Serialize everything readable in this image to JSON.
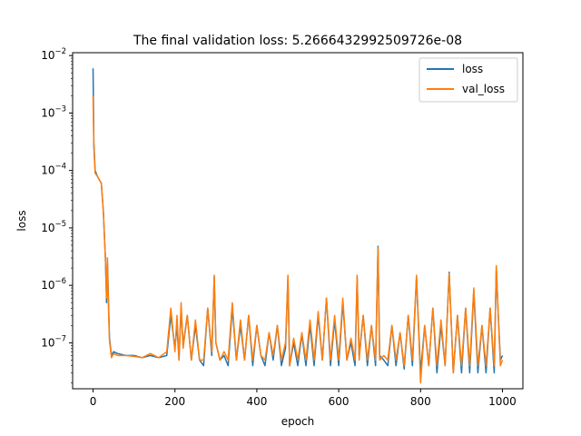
{
  "chart_data": {
    "type": "line",
    "title": "The final validation loss: 5.2666432992509726e-08",
    "xlabel": "epoch",
    "ylabel": "loss",
    "xlim": [
      -50,
      1050
    ],
    "ylim_log10": [
      -7.8,
      -1.95
    ],
    "yscale": "log",
    "grid": false,
    "legend_position": "upper right",
    "x_ticks": [
      0,
      200,
      400,
      600,
      800,
      1000
    ],
    "x_tick_labels": [
      "0",
      "200",
      "400",
      "600",
      "800",
      "1000"
    ],
    "y_ticks": [
      1e-07,
      1e-06,
      1e-05,
      0.0001,
      0.001,
      0.01
    ],
    "y_tick_bases": [
      "10",
      "10",
      "10",
      "10",
      "10",
      "10"
    ],
    "y_tick_exponents": [
      "−7",
      "−6",
      "−5",
      "−4",
      "−3",
      "−2"
    ],
    "series": [
      {
        "name": "loss",
        "color": "#1f77b4",
        "x": [
          0,
          2,
          5,
          10,
          20,
          25,
          30,
          33,
          35,
          38,
          40,
          45,
          50,
          60,
          80,
          100,
          120,
          140,
          160,
          180,
          190,
          200,
          205,
          210,
          215,
          220,
          230,
          240,
          250,
          260,
          270,
          280,
          290,
          296,
          300,
          310,
          320,
          330,
          340,
          350,
          360,
          370,
          380,
          390,
          400,
          410,
          420,
          430,
          440,
          450,
          460,
          470,
          476,
          480,
          490,
          500,
          510,
          520,
          530,
          540,
          550,
          560,
          570,
          580,
          590,
          600,
          610,
          620,
          630,
          640,
          645,
          650,
          660,
          670,
          680,
          690,
          696,
          700,
          710,
          720,
          730,
          740,
          750,
          760,
          770,
          780,
          790,
          800,
          810,
          820,
          830,
          840,
          850,
          860,
          870,
          880,
          890,
          900,
          910,
          920,
          930,
          940,
          950,
          960,
          970,
          980,
          985,
          990,
          995,
          1000
        ],
        "y": [
          0.006,
          0.0003,
          0.0001,
          8e-05,
          6e-05,
          2e-05,
          3e-06,
          5e-07,
          3e-06,
          4e-07,
          1.2e-07,
          6e-08,
          7e-08,
          6.5e-08,
          6e-08,
          6e-08,
          5.5e-08,
          6e-08,
          5.5e-08,
          6e-08,
          3e-07,
          8e-08,
          2e-07,
          5e-08,
          4e-07,
          9e-08,
          3e-07,
          5e-08,
          2e-07,
          5e-08,
          4e-08,
          4e-07,
          6e-08,
          1.4e-06,
          1e-07,
          5e-08,
          6e-08,
          4e-08,
          4e-07,
          5e-08,
          2e-07,
          5e-08,
          3e-07,
          4e-08,
          2e-07,
          6e-08,
          4e-08,
          1.5e-07,
          5e-08,
          2e-07,
          4e-08,
          8e-08,
          1.4e-06,
          4e-08,
          1e-07,
          4e-08,
          1.4e-07,
          4e-08,
          2e-07,
          4e-08,
          3e-07,
          5e-08,
          6e-07,
          4e-08,
          2.5e-07,
          4e-08,
          5e-07,
          5e-08,
          1e-07,
          4e-08,
          1.4e-06,
          6e-08,
          3e-07,
          4e-08,
          2e-07,
          4e-08,
          4.8e-06,
          6e-08,
          5e-08,
          4e-08,
          2e-07,
          4e-08,
          1.5e-07,
          3.5e-08,
          3e-07,
          4e-08,
          1.4e-06,
          3e-08,
          2e-07,
          4e-08,
          4e-07,
          3e-08,
          2e-07,
          4e-08,
          1.7e-06,
          3e-08,
          3e-07,
          3e-08,
          4e-07,
          3e-08,
          8e-07,
          3e-08,
          2e-07,
          3e-08,
          4e-07,
          3e-08,
          2e-06,
          3e-07,
          5e-08,
          6e-08
        ]
      },
      {
        "name": "val_loss",
        "color": "#ff7f0e",
        "x": [
          0,
          2,
          5,
          10,
          20,
          25,
          30,
          33,
          35,
          38,
          40,
          45,
          50,
          60,
          80,
          100,
          120,
          140,
          160,
          180,
          190,
          200,
          205,
          210,
          215,
          220,
          230,
          240,
          250,
          260,
          270,
          280,
          290,
          296,
          300,
          310,
          320,
          330,
          340,
          350,
          360,
          370,
          380,
          390,
          400,
          410,
          420,
          430,
          440,
          450,
          460,
          470,
          476,
          480,
          490,
          500,
          510,
          520,
          530,
          540,
          550,
          560,
          570,
          580,
          590,
          600,
          610,
          620,
          630,
          640,
          645,
          650,
          660,
          670,
          680,
          690,
          696,
          700,
          710,
          720,
          730,
          740,
          750,
          760,
          770,
          780,
          790,
          800,
          810,
          820,
          830,
          840,
          850,
          860,
          870,
          880,
          890,
          900,
          910,
          920,
          930,
          940,
          950,
          960,
          970,
          980,
          985,
          990,
          995,
          1000
        ],
        "y": [
          0.002,
          0.00025,
          9e-05,
          8e-05,
          6e-05,
          2e-05,
          3e-06,
          6e-07,
          3e-06,
          3e-07,
          1.1e-07,
          5.5e-08,
          6.5e-08,
          6e-08,
          6e-08,
          5.8e-08,
          5.5e-08,
          6.5e-08,
          5.5e-08,
          7e-08,
          4e-07,
          7e-08,
          3e-07,
          5e-08,
          5e-07,
          8e-08,
          3e-07,
          5e-08,
          2.5e-07,
          5e-08,
          5e-08,
          4e-07,
          7e-08,
          1.5e-06,
          1e-07,
          5e-08,
          7e-08,
          5e-08,
          5e-07,
          5e-08,
          2.5e-07,
          5e-08,
          3e-07,
          5e-08,
          2e-07,
          6e-08,
          5e-08,
          1.5e-07,
          6e-08,
          2e-07,
          5e-08,
          1e-07,
          1.5e-06,
          4e-08,
          1.2e-07,
          5e-08,
          1.5e-07,
          5e-08,
          2.5e-07,
          5e-08,
          3.5e-07,
          5e-08,
          6e-07,
          5e-08,
          3e-07,
          5e-08,
          6e-07,
          5e-08,
          1.2e-07,
          5e-08,
          1.5e-06,
          5e-08,
          3e-07,
          5e-08,
          2e-07,
          5e-08,
          4.5e-06,
          5e-08,
          6e-08,
          5e-08,
          2e-07,
          5e-08,
          1.5e-07,
          4e-08,
          3e-07,
          5e-08,
          1.5e-06,
          2e-08,
          2e-07,
          4e-08,
          4e-07,
          4e-08,
          2.5e-07,
          4e-08,
          1.6e-06,
          3e-08,
          3e-07,
          4e-08,
          4e-07,
          4e-08,
          9e-07,
          4e-08,
          2e-07,
          4e-08,
          4e-07,
          4e-08,
          2.2e-06,
          3e-07,
          4e-08,
          5e-08
        ]
      }
    ]
  }
}
